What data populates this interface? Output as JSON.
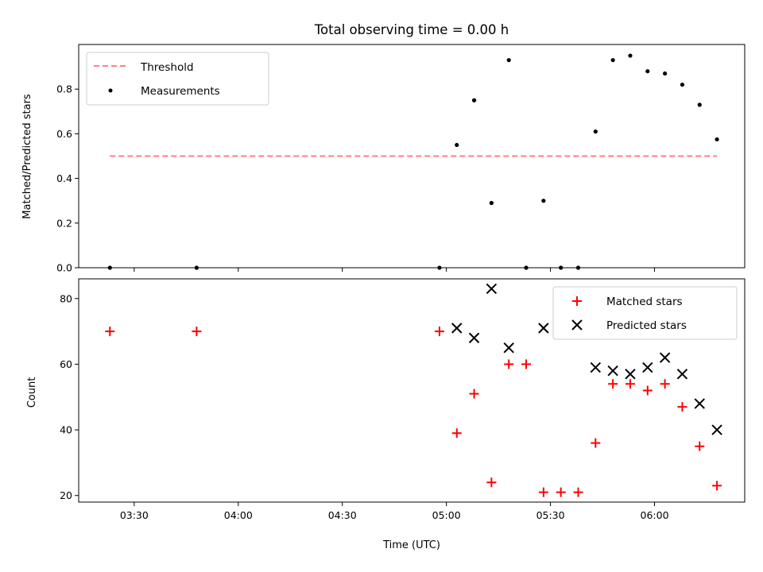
{
  "chart_data": [
    {
      "type": "scatter",
      "title": "Total observing time = 0.00 h",
      "ylabel": "Matched/Predicted stars",
      "ylim": [
        0,
        1.0
      ],
      "yticks": [
        "0.0",
        "0.2",
        "0.4",
        "0.6",
        "0.8"
      ],
      "legend_position": "top-left",
      "threshold": {
        "name": "Threshold",
        "value": 0.5,
        "x_start": "03:23",
        "x_end": "06:18",
        "color": "#ff7f7f"
      },
      "series": [
        {
          "name": "Measurements",
          "color": "#000000",
          "marker": "dot",
          "x": [
            "03:23",
            "03:48",
            "04:58",
            "05:03",
            "05:08",
            "05:13",
            "05:18",
            "05:23",
            "05:28",
            "05:33",
            "05:38",
            "05:43",
            "05:48",
            "05:53",
            "05:58",
            "06:03",
            "06:08",
            "06:13",
            "06:18"
          ],
          "y": [
            0.0,
            0.0,
            0.0,
            0.55,
            0.75,
            0.29,
            0.93,
            0.0,
            0.3,
            0.0,
            0.0,
            0.61,
            0.93,
            0.95,
            0.88,
            0.87,
            0.82,
            0.73,
            0.575
          ]
        }
      ]
    },
    {
      "type": "scatter",
      "xlabel": "Time (UTC)",
      "ylabel": "Count",
      "ylim": [
        18,
        86
      ],
      "yticks": [
        "20",
        "40",
        "60",
        "80"
      ],
      "xticks": [
        "03:30",
        "04:00",
        "04:30",
        "05:00",
        "05:30",
        "06:00"
      ],
      "legend_position": "top-right",
      "series": [
        {
          "name": "Matched stars",
          "color": "#ff0000",
          "marker": "plus",
          "x": [
            "03:23",
            "03:48",
            "04:58",
            "05:03",
            "05:08",
            "05:13",
            "05:18",
            "05:23",
            "05:28",
            "05:33",
            "05:38",
            "05:43",
            "05:48",
            "05:53",
            "05:58",
            "06:03",
            "06:08",
            "06:13",
            "06:18"
          ],
          "y": [
            70,
            70,
            70,
            39,
            51,
            24,
            60,
            60,
            21,
            21,
            21,
            36,
            54,
            54,
            52,
            54,
            47,
            35,
            23
          ]
        },
        {
          "name": "Predicted stars",
          "color": "#000000",
          "marker": "x",
          "x": [
            "05:03",
            "05:08",
            "05:13",
            "05:18",
            "05:28",
            "05:43",
            "05:48",
            "05:53",
            "05:58",
            "06:03",
            "06:08",
            "06:13",
            "06:18"
          ],
          "y": [
            71,
            68,
            83,
            65,
            71,
            59,
            58,
            57,
            59,
            62,
            57,
            48,
            40
          ]
        }
      ]
    }
  ]
}
